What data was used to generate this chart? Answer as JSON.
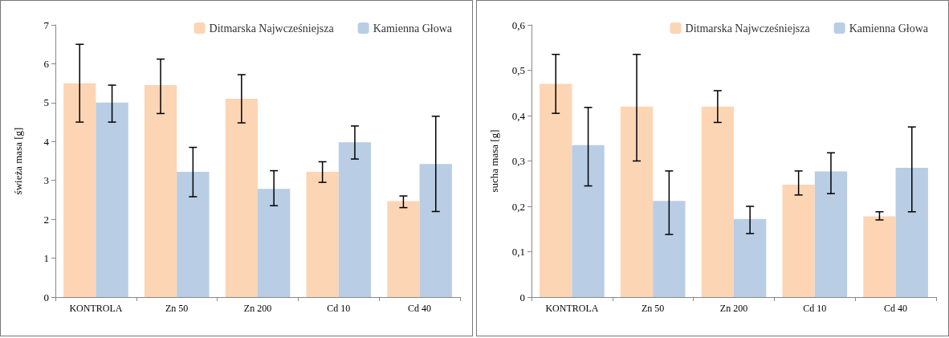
{
  "chart_data": [
    {
      "type": "bar",
      "ylabel": "świeża masa [g]",
      "categories": [
        "KONTROLA",
        "Zn 50",
        "Zn 200",
        "Cd 10",
        "Cd 40"
      ],
      "series": [
        {
          "name": "Ditmarska Najwcześniejsza",
          "color": "#fcd5b5",
          "values": [
            5.5,
            5.45,
            5.1,
            3.22,
            2.47
          ],
          "errors": [
            [
              4.5,
              6.5
            ],
            [
              4.72,
              6.12
            ],
            [
              4.48,
              5.72
            ],
            [
              2.95,
              3.48
            ],
            [
              2.3,
              2.6
            ]
          ]
        },
        {
          "name": "Kamienna Głowa",
          "color": "#b9cde5",
          "values": [
            5.0,
            3.22,
            2.78,
            3.98,
            3.42
          ],
          "errors": [
            [
              4.5,
              5.45
            ],
            [
              2.58,
              3.85
            ],
            [
              2.35,
              3.25
            ],
            [
              3.55,
              4.4
            ],
            [
              2.2,
              4.65
            ]
          ]
        }
      ],
      "ylim": [
        0,
        7
      ],
      "yticks": [
        0,
        1,
        2,
        3,
        4,
        5,
        6,
        7
      ],
      "grid": false,
      "legend": "top right"
    },
    {
      "type": "bar",
      "ylabel": "sucha masa [g]",
      "categories": [
        "KONTROLA",
        "Zn 50",
        "Zn 200",
        "Cd 10",
        "Cd 40"
      ],
      "series": [
        {
          "name": "Ditmarska Najwcześniejsza",
          "color": "#fcd5b5",
          "values": [
            0.47,
            0.42,
            0.42,
            0.248,
            0.178
          ],
          "errors": [
            [
              0.405,
              0.535
            ],
            [
              0.3,
              0.535
            ],
            [
              0.385,
              0.455
            ],
            [
              0.225,
              0.278
            ],
            [
              0.17,
              0.188
            ]
          ]
        },
        {
          "name": "Kamienna Głowa",
          "color": "#b9cde5",
          "values": [
            0.335,
            0.212,
            0.172,
            0.277,
            0.285
          ],
          "errors": [
            [
              0.245,
              0.418
            ],
            [
              0.138,
              0.278
            ],
            [
              0.14,
              0.2
            ],
            [
              0.228,
              0.318
            ],
            [
              0.188,
              0.375
            ]
          ]
        }
      ],
      "ylim": [
        0,
        0.6
      ],
      "yticks": [
        {
          "value": 0,
          "label": "0"
        },
        {
          "value": 0.1,
          "label": "0,1"
        },
        {
          "value": 0.2,
          "label": "0,2"
        },
        {
          "value": 0.3,
          "label": "0,3"
        },
        {
          "value": 0.4,
          "label": "0,4"
        },
        {
          "value": 0.5,
          "label": "0,5"
        },
        {
          "value": 0.6,
          "label": "0,6"
        }
      ],
      "grid": false,
      "legend": "top right"
    }
  ]
}
